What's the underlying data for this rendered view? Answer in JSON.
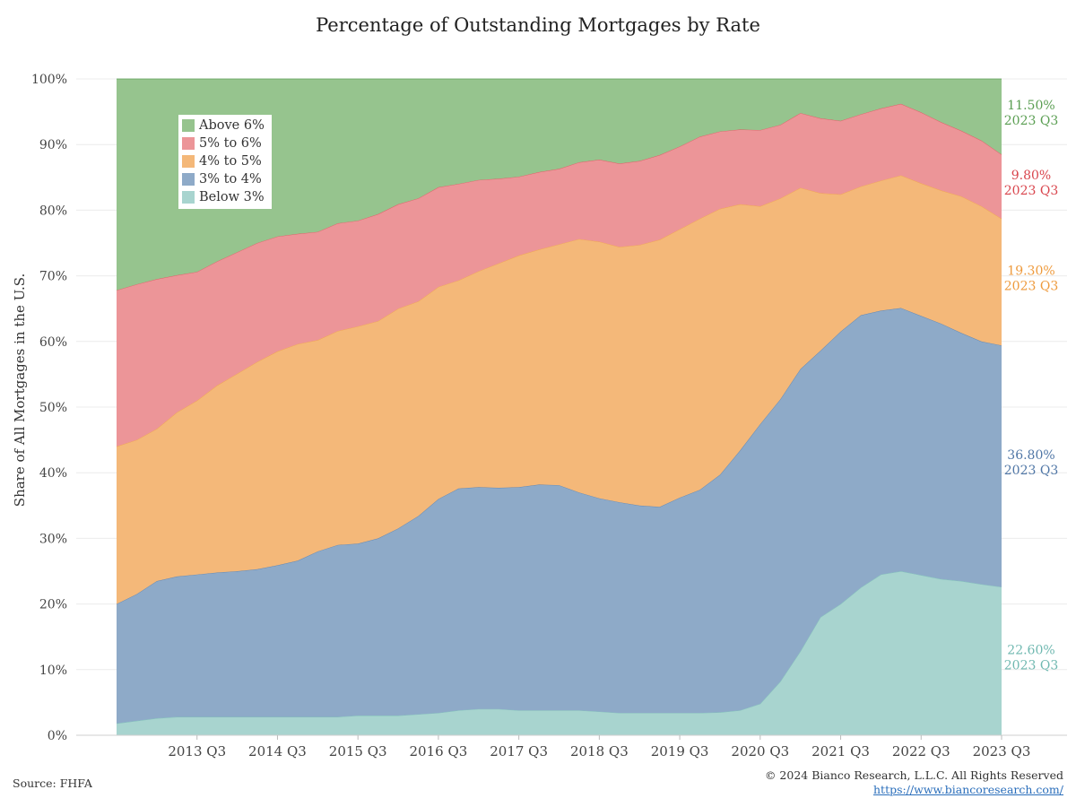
{
  "chart_data": {
    "type": "area",
    "stacked": true,
    "title": "Percentage of Outstanding Mortgages by Rate",
    "ylabel": "Share of All Mortgages in the U.S.",
    "xlabel": "",
    "ylim": [
      0,
      100
    ],
    "yticks": [
      "0%",
      "10%",
      "20%",
      "30%",
      "40%",
      "50%",
      "60%",
      "70%",
      "80%",
      "90%",
      "100%"
    ],
    "xtick_labels": [
      "2013 Q3",
      "2014 Q3",
      "2015 Q3",
      "2016 Q3",
      "2017 Q3",
      "2018 Q3",
      "2019 Q3",
      "2020 Q3",
      "2021 Q3",
      "2022 Q3",
      "2023 Q3"
    ],
    "x": [
      "2012 Q3",
      "2012 Q4",
      "2013 Q1",
      "2013 Q2",
      "2013 Q3",
      "2013 Q4",
      "2014 Q1",
      "2014 Q2",
      "2014 Q3",
      "2014 Q4",
      "2015 Q1",
      "2015 Q2",
      "2015 Q3",
      "2015 Q4",
      "2016 Q1",
      "2016 Q2",
      "2016 Q3",
      "2016 Q4",
      "2017 Q1",
      "2017 Q2",
      "2017 Q3",
      "2017 Q4",
      "2018 Q1",
      "2018 Q2",
      "2018 Q3",
      "2018 Q4",
      "2019 Q1",
      "2019 Q2",
      "2019 Q3",
      "2019 Q4",
      "2020 Q1",
      "2020 Q2",
      "2020 Q3",
      "2020 Q4",
      "2021 Q1",
      "2021 Q2",
      "2021 Q3",
      "2021 Q4",
      "2022 Q1",
      "2022 Q2",
      "2022 Q3",
      "2022 Q4",
      "2023 Q1",
      "2023 Q2",
      "2023 Q3"
    ],
    "legend_position": "top-left",
    "grid": true,
    "series": [
      {
        "name": "Below 3%",
        "color": "#a8d4cf",
        "values": [
          1.8,
          2.2,
          2.6,
          2.8,
          2.8,
          2.8,
          2.8,
          2.8,
          2.8,
          2.8,
          2.8,
          2.8,
          3.0,
          3.0,
          3.0,
          3.2,
          3.4,
          3.8,
          4.0,
          4.0,
          3.8,
          3.8,
          3.8,
          3.8,
          3.6,
          3.4,
          3.4,
          3.4,
          3.4,
          3.4,
          3.5,
          3.8,
          4.8,
          8.2,
          12.8,
          18.0,
          20.0,
          22.5,
          24.5,
          25.0,
          24.4,
          23.8,
          23.5,
          23.0,
          22.6
        ]
      },
      {
        "name": "3% to 4%",
        "color": "#8eaac8",
        "values": [
          18.2,
          19.3,
          20.9,
          21.4,
          21.7,
          22.0,
          22.2,
          22.5,
          23.1,
          23.8,
          25.2,
          26.2,
          26.2,
          27.0,
          28.5,
          30.2,
          32.6,
          33.8,
          33.8,
          33.7,
          34.0,
          34.4,
          34.3,
          33.2,
          32.5,
          32.1,
          31.6,
          31.4,
          32.8,
          34.0,
          36.2,
          39.6,
          42.6,
          43.0,
          43.0,
          40.6,
          41.5,
          41.5,
          40.2,
          40.1,
          39.5,
          38.9,
          37.8,
          37.0,
          36.8
        ]
      },
      {
        "name": "4% to 5%",
        "color": "#f4b879",
        "values": [
          24.0,
          23.5,
          23.2,
          25.0,
          26.5,
          28.5,
          30.1,
          31.6,
          32.6,
          33.0,
          32.2,
          32.6,
          33.1,
          33.1,
          33.5,
          32.7,
          32.3,
          31.7,
          32.9,
          34.2,
          35.3,
          35.8,
          36.7,
          38.6,
          39.1,
          38.9,
          39.7,
          40.7,
          40.9,
          41.3,
          40.5,
          37.5,
          33.2,
          30.6,
          27.6,
          24.0,
          20.9,
          19.6,
          19.8,
          20.2,
          20.2,
          20.3,
          20.8,
          20.6,
          19.3
        ]
      },
      {
        "name": "5% to 6%",
        "color": "#ec9598",
        "values": [
          23.8,
          23.7,
          22.8,
          20.9,
          19.6,
          18.9,
          18.5,
          18.1,
          17.5,
          16.8,
          16.5,
          16.4,
          16.1,
          16.3,
          15.9,
          15.7,
          15.2,
          14.7,
          13.9,
          12.9,
          12.0,
          11.8,
          11.5,
          11.7,
          12.5,
          12.7,
          12.8,
          12.9,
          12.6,
          12.5,
          11.8,
          11.4,
          11.6,
          11.2,
          11.4,
          11.4,
          11.2,
          11.0,
          11.0,
          10.9,
          10.8,
          10.4,
          10.0,
          10.0,
          9.8
        ]
      },
      {
        "name": "Above 6%",
        "color": "#96c48e",
        "values": [
          32.2,
          31.3,
          30.5,
          29.9,
          29.4,
          27.8,
          26.4,
          25.0,
          24.0,
          23.6,
          23.3,
          22.0,
          21.6,
          20.6,
          19.1,
          18.2,
          16.5,
          16.0,
          15.4,
          15.2,
          14.9,
          14.2,
          13.7,
          12.7,
          12.3,
          12.9,
          12.5,
          11.6,
          10.3,
          8.8,
          8.0,
          7.7,
          7.8,
          7.0,
          5.2,
          6.0,
          6.4,
          5.4,
          4.5,
          3.8,
          5.1,
          6.6,
          7.9,
          9.4,
          11.5
        ]
      }
    ],
    "end_labels": [
      {
        "series": "Above 6%",
        "value_text": "11.50%",
        "period_text": "2023 Q3",
        "color": "#5a9e52"
      },
      {
        "series": "5% to 6%",
        "value_text": "9.80%",
        "period_text": "2023 Q3",
        "color": "#d9454d"
      },
      {
        "series": "4% to 5%",
        "value_text": "19.30%",
        "period_text": "2023 Q3",
        "color": "#ee9a3c"
      },
      {
        "series": "3% to 4%",
        "value_text": "36.80%",
        "period_text": "2023 Q3",
        "color": "#4f76a6"
      },
      {
        "series": "Below 3%",
        "value_text": "22.60%",
        "period_text": "2023 Q3",
        "color": "#6fb8b0"
      }
    ],
    "legend_order": [
      "Above 6%",
      "5% to 6%",
      "4% to 5%",
      "3% to 4%",
      "Below 3%"
    ]
  },
  "footer": {
    "source": "Source: FHFA",
    "copyright": "© 2024 Bianco Research, L.L.C. All Rights Reserved",
    "url": "https://www.biancoresearch.com/"
  }
}
